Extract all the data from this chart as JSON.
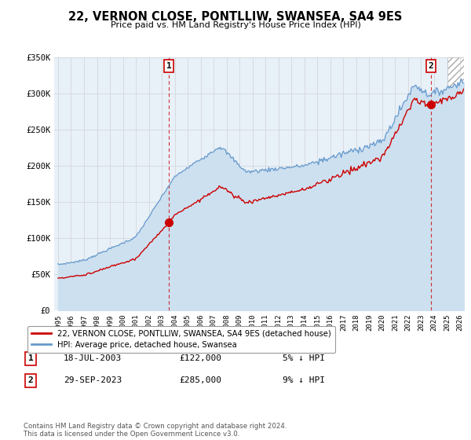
{
  "title": "22, VERNON CLOSE, PONTLLIW, SWANSEA, SA4 9ES",
  "subtitle": "Price paid vs. HM Land Registry's House Price Index (HPI)",
  "legend_label_red": "22, VERNON CLOSE, PONTLLIW, SWANSEA, SA4 9ES (detached house)",
  "legend_label_blue": "HPI: Average price, detached house, Swansea",
  "sale1_label": "1",
  "sale1_date": "18-JUL-2003",
  "sale1_price": "£122,000",
  "sale1_hpi": "5% ↓ HPI",
  "sale2_label": "2",
  "sale2_date": "29-SEP-2023",
  "sale2_price": "£285,000",
  "sale2_hpi": "9% ↓ HPI",
  "footer": "Contains HM Land Registry data © Crown copyright and database right 2024.\nThis data is licensed under the Open Government Licence v3.0.",
  "ylim": [
    0,
    350000
  ],
  "yticks": [
    0,
    50000,
    100000,
    150000,
    200000,
    250000,
    300000,
    350000
  ],
  "ytick_labels": [
    "£0",
    "£50K",
    "£100K",
    "£150K",
    "£200K",
    "£250K",
    "£300K",
    "£350K"
  ],
  "color_red": "#cc0000",
  "color_blue": "#6699cc",
  "color_blue_fill": "#cce0f0",
  "color_grid": "#cccccc",
  "background_color": "#e8f0f8",
  "sale1_x_year": 2003.55,
  "sale1_y": 122000,
  "sale2_x_year": 2023.75,
  "sale2_y": 285000,
  "xmin": 1994.7,
  "xmax": 2026.3,
  "hatch_start": 2025.0
}
